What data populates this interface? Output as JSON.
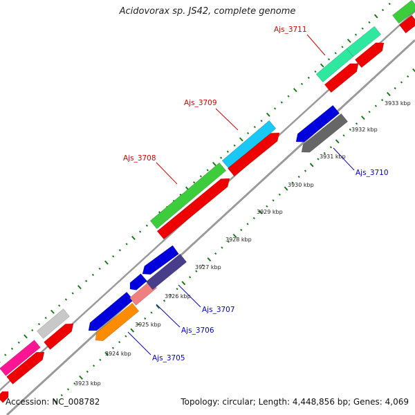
{
  "map": {
    "title": "Acidovorax sp. JS42, complete genome",
    "accession": "Accession: NC_008782",
    "summary": "Topology: circular; Length: 4,448,856 bp; Genes: 4,069"
  },
  "colors": {
    "backbone": "#9a9a9a",
    "tick": "#1a7a1a",
    "forward_label": "#dd0000",
    "reverse_label": "#0000cc"
  },
  "ticks": [
    {
      "label": "3923 kbp"
    },
    {
      "label": "3924 kbp"
    },
    {
      "label": "3925 kbp"
    },
    {
      "label": "3926 kbp"
    },
    {
      "label": "3927 kbp"
    },
    {
      "label": "3928 kbp"
    },
    {
      "label": "3929 kbp"
    },
    {
      "label": "3930 kbp"
    },
    {
      "label": "3931 kbp"
    },
    {
      "label": "3932 kbp"
    },
    {
      "label": "3933 kbp"
    }
  ],
  "gene_labels": [
    {
      "name": "Ajs_3711",
      "strand": "forward"
    },
    {
      "name": "Ajs_3709",
      "strand": "forward"
    },
    {
      "name": "Ajs_3708",
      "strand": "forward"
    },
    {
      "name": "Ajs_3710",
      "strand": "reverse"
    },
    {
      "name": "Ajs_3707",
      "strand": "reverse"
    },
    {
      "name": "Ajs_3706",
      "strand": "reverse"
    },
    {
      "name": "Ajs_3705",
      "strand": "reverse"
    }
  ],
  "features": [
    {
      "kind": "forward-gene",
      "color": "#ff1493"
    },
    {
      "kind": "forward-gene",
      "color": "#c8c8c8"
    },
    {
      "kind": "forward-gene",
      "color": "#3ccc3c"
    },
    {
      "kind": "forward-gene",
      "color": "#19c8f5"
    },
    {
      "kind": "forward-gene",
      "color": "#2ee8a0"
    },
    {
      "kind": "forward-gene",
      "color": "#2ee8a0"
    },
    {
      "kind": "forward-gene",
      "color": "#3ccc3c"
    },
    {
      "kind": "forward-cds",
      "color": "#ee0000"
    },
    {
      "kind": "reverse-gene",
      "color": "#0000dd"
    },
    {
      "kind": "reverse-gene",
      "color": "#f08080"
    },
    {
      "kind": "reverse-gene",
      "color": "#ff8c00"
    },
    {
      "kind": "reverse-gene",
      "color": "#483d8b"
    },
    {
      "kind": "reverse-gene",
      "color": "#666666"
    }
  ]
}
